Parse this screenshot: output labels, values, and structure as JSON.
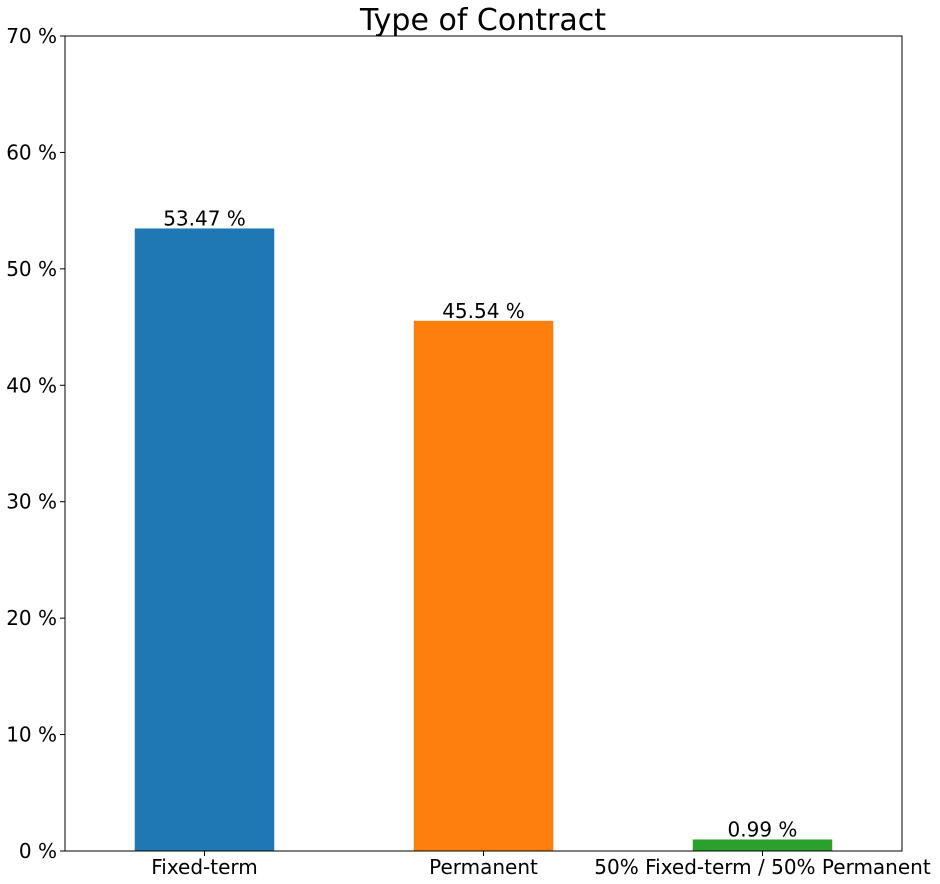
{
  "chart_data": {
    "type": "bar",
    "title": "Type of Contract",
    "xlabel": "",
    "ylabel": "",
    "categories": [
      "Fixed-term",
      "Permanent",
      "50% Fixed-term / 50% Permanent"
    ],
    "values": [
      53.47,
      45.54,
      0.99
    ],
    "value_labels": [
      "53.47 %",
      "45.54 %",
      "0.99 %"
    ],
    "colors": [
      "#1f77b4",
      "#ff7f0e",
      "#2ca02c"
    ],
    "ylim": [
      0,
      70
    ],
    "yticks": [
      0,
      10,
      20,
      30,
      40,
      50,
      60,
      70
    ],
    "ytick_labels": [
      "0 %",
      "10 %",
      "20 %",
      "30 %",
      "40 %",
      "50 %",
      "60 %",
      "70 %"
    ],
    "grid": false,
    "legend": "none"
  }
}
